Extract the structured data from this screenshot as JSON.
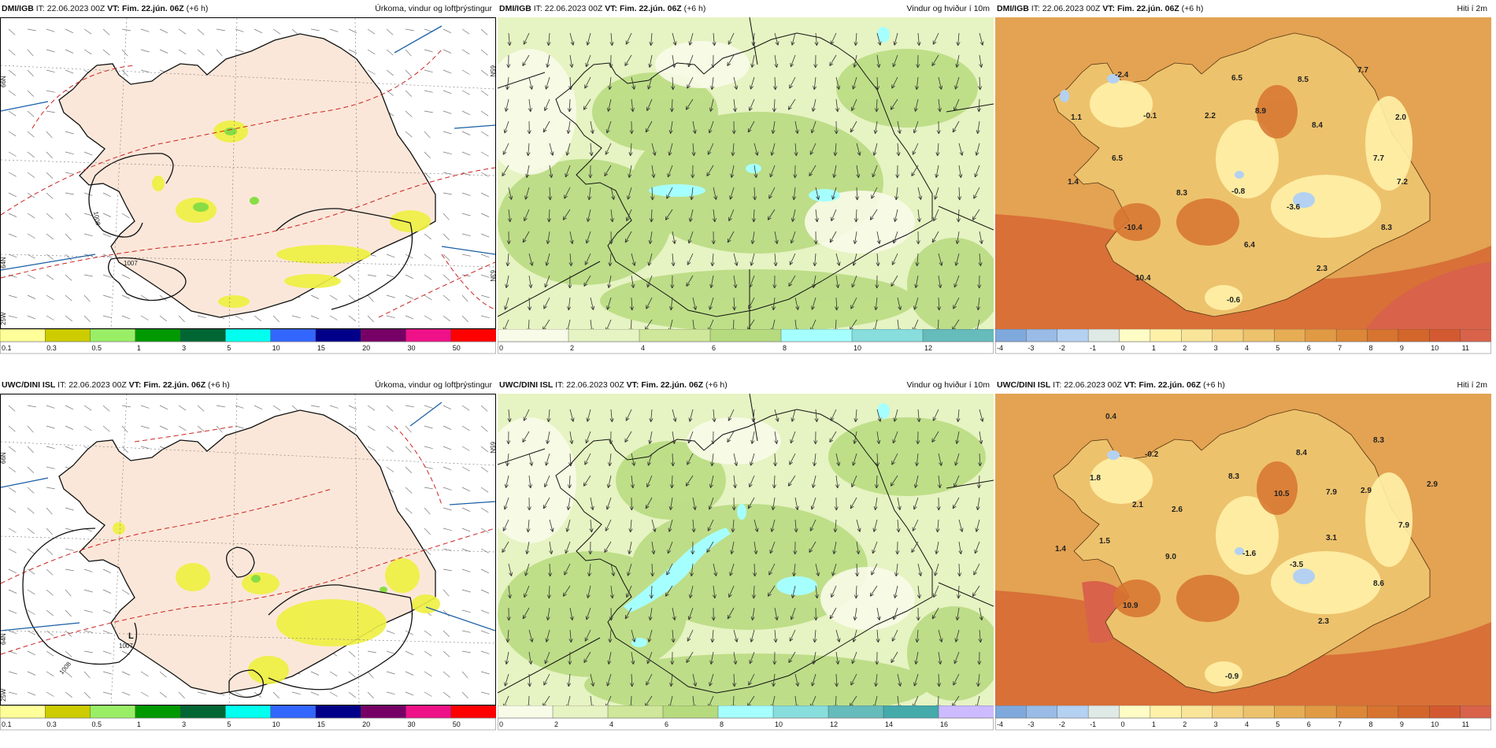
{
  "header": {
    "init_prefix": "IT:",
    "init_time": "22.06.2023 00Z",
    "valid_prefix": "VT:",
    "valid_time": "Fim. 22.jún. 06Z",
    "lead": "(+6 h)"
  },
  "models": [
    "DMI/IGB",
    "UWC/DINI ISL"
  ],
  "product_titles": [
    "Úrkoma, vindur og loftþrýstingur",
    "Vindur og hviður í 10m",
    "Hiti í 2m"
  ],
  "colorbars": {
    "precip": {
      "labels": [
        "0.1",
        "0.3",
        "0.5",
        "1",
        "3",
        "5",
        "10",
        "15",
        "20",
        "30",
        "50"
      ],
      "colors": [
        "#ffff99",
        "#cccc00",
        "#99ee66",
        "#009900",
        "#006633",
        "#00ffee",
        "#3366ff",
        "#000088",
        "#770066",
        "#ee1188",
        "#ff0000"
      ]
    },
    "wind_dmi": {
      "labels": [
        "0",
        "2",
        "4",
        "6",
        "8",
        "10",
        "12"
      ],
      "colors": [
        "#f8fbe8",
        "#e6f3c2",
        "#cfe79a",
        "#b6da7e",
        "#a6ffff",
        "#88dddd",
        "#66bbbb"
      ]
    },
    "wind_uwc": {
      "labels": [
        "0",
        "2",
        "4",
        "6",
        "8",
        "10",
        "12",
        "14",
        "16"
      ],
      "colors": [
        "#f8fbe8",
        "#e6f3c2",
        "#cfe79a",
        "#b6da7e",
        "#a6ffff",
        "#88dddd",
        "#66bbbb",
        "#44aaaa",
        "#ccbbff"
      ]
    },
    "temp": {
      "labels": [
        "-4",
        "-3",
        "-2",
        "-1",
        "0",
        "1",
        "2",
        "3",
        "4",
        "5",
        "6",
        "7",
        "8",
        "9",
        "10",
        "11"
      ],
      "colors": [
        "#7fa9dd",
        "#99bbe6",
        "#b4d1f2",
        "#dfe9e6",
        "#fffcc5",
        "#fff1a8",
        "#f9e59a",
        "#f3d17e",
        "#edc26c",
        "#e6ad55",
        "#e19a44",
        "#dc8637",
        "#d7742f",
        "#d3662b",
        "#d35a30",
        "#d8624a"
      ]
    }
  },
  "map_labels": {
    "dmi_precip": {
      "isobars": [
        "1008",
        "1007"
      ],
      "lat_labels": [
        "66N",
        "65N",
        "64N",
        "63N"
      ],
      "lon_labels": [
        "25W"
      ]
    },
    "uwc_precip": {
      "isobars": [
        "1008",
        "1007",
        "L"
      ],
      "lat_labels": [
        "66N",
        "64N",
        "65N"
      ],
      "lon_labels": [
        "25W"
      ]
    }
  },
  "temp_values": {
    "dmi": [
      "-2.4",
      "6.5",
      "8.5",
      "7.7",
      "-0.1",
      "1.1",
      "8.9",
      "2.2",
      "8.4",
      "2.0",
      "6.5",
      "7.7",
      "1.4",
      "8.3",
      "-0.8",
      "7.2",
      "-10.4",
      "-3.6",
      "8.3",
      "6.4",
      "2.3",
      "10.4",
      "-0.6"
    ],
    "uwc": [
      "0.4",
      "-0.2",
      "8.4",
      "8.3",
      "1.8",
      "8.3",
      "10.5",
      "7.9",
      "2.9",
      "2.9",
      "2.1",
      "2.6",
      "7.9",
      "1.5",
      "3.1",
      "1.4",
      "9.0",
      "-1.6",
      "-3.5",
      "8.6",
      "10.9",
      "2.3",
      "-0.9"
    ]
  },
  "colors": {
    "land": "#fbe7d9",
    "sea": "#ffffff",
    "wind_base": "#e6f3c2",
    "temp_sea": "#e3a352",
    "isobar": "#111111",
    "dashed_contour": "#cc2222",
    "coast_line": "#1a5fa6"
  }
}
